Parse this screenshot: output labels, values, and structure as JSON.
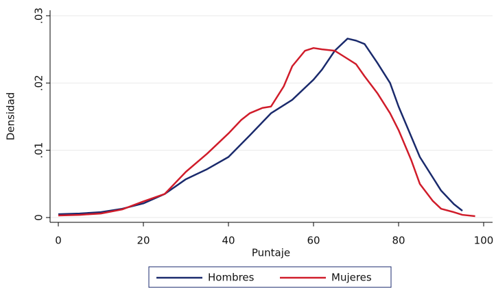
{
  "chart_data": {
    "type": "line",
    "y_label": "Densidad",
    "x_label": "Puntaje",
    "xlim": [
      0,
      100
    ],
    "xticks": [
      0,
      20,
      40,
      60,
      80,
      100
    ],
    "ylim": [
      0,
      0.03
    ],
    "yticks": [
      0,
      {
        "value": 0.01,
        "label": ".01"
      },
      {
        "value": 0.02,
        "label": ".02"
      },
      {
        "value": 0.03,
        "label": ".03"
      }
    ],
    "grid": true,
    "legend": "bottom",
    "series": [
      {
        "name": "Hombres",
        "color": "#1a2a6c",
        "x": [
          0,
          5,
          10,
          15,
          20,
          25,
          30,
          35,
          40,
          45,
          50,
          55,
          60,
          62,
          65,
          68,
          70,
          72,
          75,
          78,
          80,
          83,
          85,
          88,
          90,
          93,
          95
        ],
        "values": [
          0.0005,
          0.0006,
          0.0008,
          0.0013,
          0.0021,
          0.0035,
          0.0057,
          0.0072,
          0.009,
          0.0122,
          0.0155,
          0.0175,
          0.0205,
          0.022,
          0.0248,
          0.0266,
          0.0263,
          0.0258,
          0.023,
          0.02,
          0.0165,
          0.012,
          0.009,
          0.006,
          0.004,
          0.002,
          0.001
        ]
      },
      {
        "name": "Mujeres",
        "color": "#d01c2a",
        "x": [
          0,
          5,
          10,
          15,
          20,
          25,
          30,
          35,
          40,
          43,
          45,
          48,
          50,
          53,
          55,
          58,
          60,
          62,
          65,
          67,
          70,
          72,
          75,
          78,
          80,
          83,
          85,
          88,
          90,
          93,
          95,
          98
        ],
        "values": [
          0.0003,
          0.0004,
          0.0006,
          0.0012,
          0.0024,
          0.0035,
          0.0068,
          0.0095,
          0.0125,
          0.0145,
          0.0155,
          0.0163,
          0.0165,
          0.0195,
          0.0225,
          0.0248,
          0.0252,
          0.025,
          0.0248,
          0.024,
          0.0228,
          0.021,
          0.0185,
          0.0155,
          0.013,
          0.0085,
          0.005,
          0.0025,
          0.0013,
          0.0008,
          0.0004,
          0.0002
        ]
      }
    ]
  }
}
